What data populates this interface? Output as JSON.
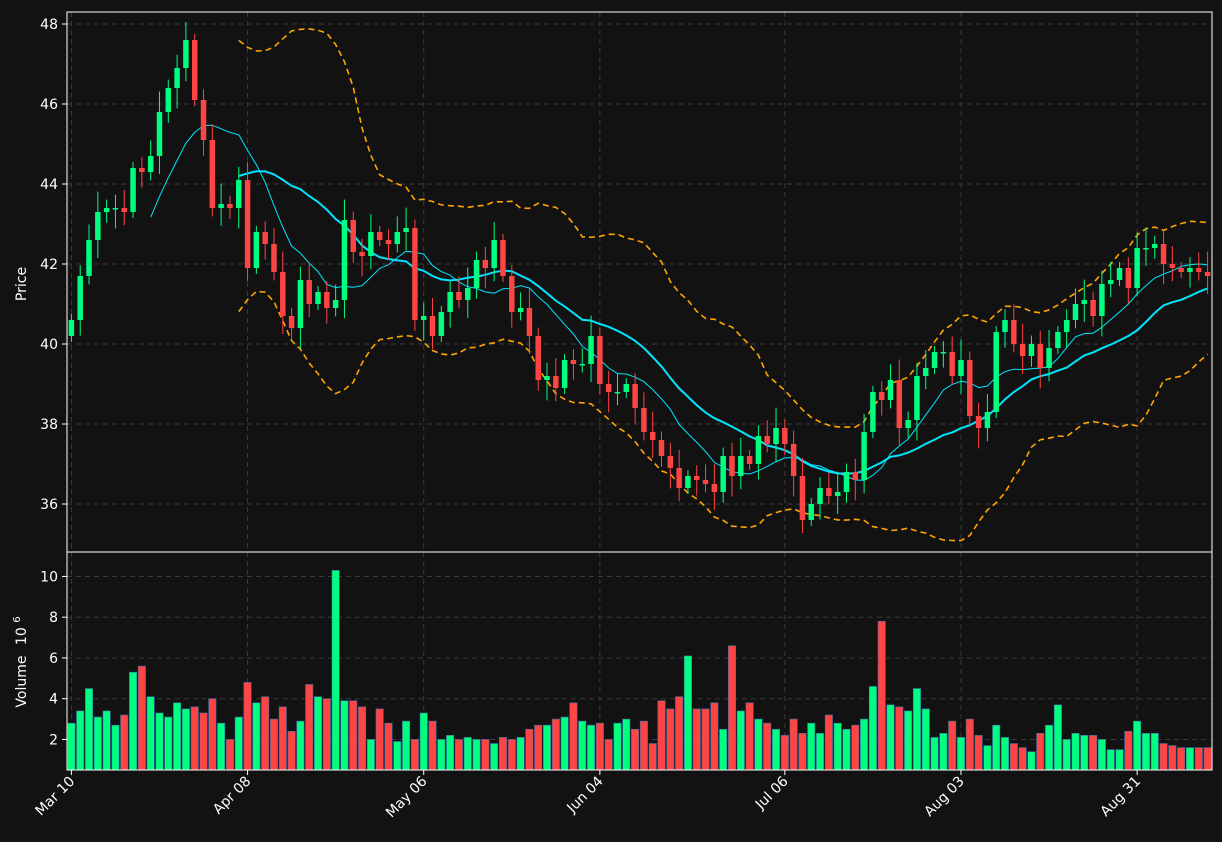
{
  "chart_data": [
    {
      "type": "candlestick",
      "panel": "price",
      "ylabel": "Price",
      "ylim": [
        34.8,
        48.3
      ],
      "yticks": [
        36,
        38,
        40,
        42,
        44,
        46,
        48
      ],
      "xticks": [
        "Mar 10",
        "Apr 08",
        "May 06",
        "Jun 04",
        "Jul 06",
        "Aug 03",
        "Aug 31"
      ],
      "grid": true,
      "n_bars": 130,
      "up_color": "#00ff80",
      "down_color": "#ff4444",
      "close": [
        40.6,
        41.7,
        42.6,
        43.3,
        43.4,
        43.4,
        43.3,
        44.4,
        44.3,
        44.7,
        45.8,
        46.4,
        46.9,
        47.6,
        46.1,
        45.1,
        43.4,
        43.5,
        43.4,
        44.1,
        41.9,
        42.8,
        42.5,
        41.8,
        40.7,
        40.4,
        41.6,
        41.0,
        41.3,
        40.9,
        41.1,
        43.1,
        42.3,
        42.2,
        42.8,
        42.6,
        42.5,
        42.8,
        42.9,
        40.6,
        40.7,
        40.2,
        40.8,
        41.3,
        41.1,
        41.4,
        42.1,
        41.9,
        42.6,
        41.7,
        40.8,
        40.9,
        40.2,
        39.1,
        39.2,
        38.9,
        39.6,
        39.5,
        39.5,
        40.2,
        39.0,
        38.8,
        38.8,
        39.0,
        38.4,
        37.8,
        37.6,
        37.2,
        36.9,
        36.4,
        36.7,
        36.6,
        36.5,
        36.3,
        37.2,
        36.7,
        37.2,
        37.0,
        37.7,
        37.5,
        37.9,
        37.5,
        36.7,
        35.6,
        36.0,
        36.4,
        36.2,
        36.3,
        36.8,
        36.6,
        37.8,
        38.8,
        38.6,
        39.1,
        37.9,
        38.1,
        39.2,
        39.4,
        39.8,
        39.8,
        39.2,
        39.6,
        38.2,
        37.9,
        38.3,
        40.3,
        40.6,
        40.0,
        39.7,
        40.0,
        39.4,
        39.9,
        40.3,
        40.6,
        41.0,
        41.1,
        40.7,
        41.5,
        41.6,
        41.9,
        41.4,
        42.4,
        42.4,
        42.5,
        42.0,
        41.9,
        41.8,
        41.9,
        41.8,
        41.7
      ],
      "volume_colors_note": "up bars green, down bars red",
      "overlays": [
        {
          "name": "",
          "color": "#00e5ff",
          "style": "solid-thin"
        },
        {
          "name": "",
          "color": "#00e5ff",
          "style": "solid-thick"
        },
        {
          "name": "",
          "color": "#ffa500",
          "style": "dashed-upper"
        },
        {
          "name": "",
          "color": "#ffa500",
          "style": "dashed-lower"
        }
      ]
    },
    {
      "type": "bar",
      "panel": "volume",
      "ylabel": "Volume",
      "ylabel_exponent": "10",
      "ylabel_exponent_power": "6",
      "ylim": [
        0.5,
        11.2
      ],
      "yticks": [
        2,
        4,
        6,
        8,
        10
      ],
      "values": [
        2.8,
        3.4,
        4.5,
        3.1,
        3.4,
        2.7,
        3.2,
        5.3,
        5.6,
        4.1,
        3.3,
        3.1,
        3.8,
        3.5,
        3.6,
        3.3,
        4.0,
        2.8,
        2.0,
        3.1,
        4.8,
        3.8,
        4.1,
        3.0,
        3.6,
        2.4,
        2.9,
        4.7,
        4.1,
        4.0,
        10.3,
        3.9,
        3.9,
        3.6,
        2.0,
        3.5,
        2.8,
        1.9,
        2.9,
        2.0,
        3.3,
        2.9,
        2.0,
        2.2,
        2.0,
        2.1,
        2.0,
        2.0,
        1.8,
        2.1,
        2.0,
        2.1,
        2.5,
        2.7,
        2.7,
        3.0,
        3.1,
        3.8,
        2.9,
        2.7,
        2.8,
        2.0,
        2.8,
        3.0,
        2.5,
        2.9,
        1.8,
        3.9,
        3.5,
        4.1,
        6.1,
        3.5,
        3.5,
        3.8,
        2.5,
        6.6,
        3.4,
        3.8,
        3.0,
        2.8,
        2.5,
        2.2,
        3.0,
        2.3,
        2.8,
        2.3,
        3.2,
        2.8,
        2.5,
        2.7,
        3.0,
        4.6,
        7.8,
        3.7,
        3.6,
        3.4,
        4.5,
        3.5,
        2.1,
        2.3,
        2.9,
        2.1,
        3.0,
        2.2,
        1.7,
        2.7,
        2.1,
        1.8,
        1.6,
        1.4,
        2.3,
        2.7,
        3.7,
        2.0,
        2.3,
        2.2,
        2.2,
        2.0,
        1.5,
        1.5,
        2.4,
        2.9,
        2.3,
        2.3,
        1.8,
        1.7,
        1.6,
        1.6,
        1.6,
        1.6
      ]
    }
  ],
  "colors": {
    "background": "#121212",
    "grid": "#3a3a3a",
    "axes_frame": "#ffffff",
    "text": "#ffffff",
    "up": "#00ff80",
    "down": "#ff4444",
    "ma_line": "#00e5ff",
    "band_line": "#ffa500"
  }
}
